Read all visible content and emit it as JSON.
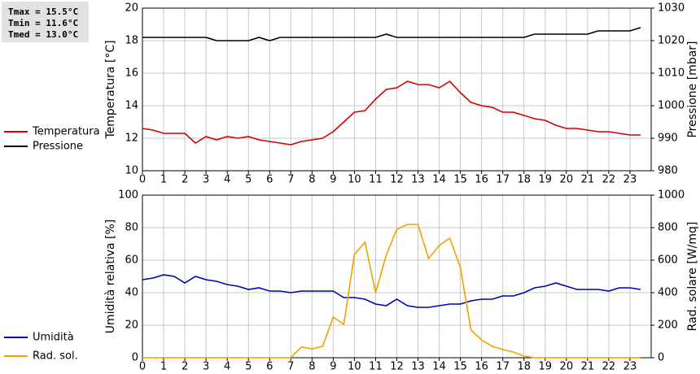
{
  "chart_data": [
    {
      "type": "line",
      "annotations": [
        "Tmax = 15.5°C",
        "Tmin = 11.6°C",
        "Tmed = 13.0°C"
      ],
      "ylabel": "Temperatura [°C]",
      "y2label": "Pressione [mbar]",
      "x": [
        0,
        0.5,
        1,
        1.5,
        2,
        2.5,
        3,
        3.5,
        4,
        4.5,
        5,
        5.5,
        6,
        6.5,
        7,
        7.5,
        8,
        8.5,
        9,
        9.5,
        10,
        10.5,
        11,
        11.5,
        12,
        12.5,
        13,
        13.5,
        14,
        14.5,
        15,
        15.5,
        16,
        16.5,
        17,
        17.5,
        18,
        18.5,
        19,
        19.5,
        20,
        20.5,
        21,
        21.5,
        22,
        22.5,
        23,
        23.5
      ],
      "series": [
        {
          "name": "Temperatura",
          "color": "#d40000",
          "values": [
            12.6,
            12.5,
            12.3,
            12.3,
            12.3,
            11.7,
            12.1,
            11.9,
            12.1,
            12.0,
            12.1,
            11.9,
            11.8,
            11.7,
            11.6,
            11.8,
            11.9,
            12.0,
            12.4,
            13.0,
            13.6,
            13.7,
            14.4,
            15.0,
            15.1,
            15.5,
            15.3,
            15.3,
            15.1,
            15.5,
            14.8,
            14.2,
            14.0,
            13.9,
            13.6,
            13.6,
            13.4,
            13.2,
            13.1,
            12.8,
            12.6,
            12.6,
            12.5,
            12.4,
            12.4,
            12.3,
            12.2,
            12.2
          ]
        },
        {
          "name": "Pressione",
          "color": "#000000",
          "axis": "y2",
          "values": [
            1021,
            1021,
            1021,
            1021,
            1021,
            1021,
            1021,
            1020,
            1020,
            1020,
            1020,
            1021,
            1020,
            1021,
            1021,
            1021,
            1021,
            1021,
            1021,
            1021,
            1021,
            1021,
            1021,
            1022,
            1021,
            1021,
            1021,
            1021,
            1021,
            1021,
            1021,
            1021,
            1021,
            1021,
            1021,
            1021,
            1021,
            1022,
            1022,
            1022,
            1022,
            1022,
            1022,
            1023,
            1023,
            1023,
            1023,
            1024
          ]
        }
      ],
      "xlim": [
        0,
        24
      ],
      "xticks": [
        0,
        1,
        2,
        3,
        4,
        5,
        6,
        7,
        8,
        9,
        10,
        11,
        12,
        13,
        14,
        15,
        16,
        17,
        18,
        19,
        20,
        21,
        22,
        23
      ],
      "ylim": [
        10,
        20
      ],
      "yticks": [
        10,
        12,
        14,
        16,
        18,
        20
      ],
      "y2lim": [
        980,
        1030
      ],
      "y2ticks": [
        980,
        990,
        1000,
        1010,
        1020,
        1030
      ],
      "grid": true
    },
    {
      "type": "line",
      "ylabel": "Umidità relativa [%]",
      "y2label": "Rad. solare [W/mq]",
      "x": [
        0,
        0.5,
        1,
        1.5,
        2,
        2.5,
        3,
        3.5,
        4,
        4.5,
        5,
        5.5,
        6,
        6.5,
        7,
        7.5,
        8,
        8.5,
        9,
        9.5,
        10,
        10.5,
        11,
        11.5,
        12,
        12.5,
        13,
        13.5,
        14,
        14.5,
        15,
        15.5,
        16,
        16.5,
        17,
        17.5,
        18,
        18.5,
        19,
        19.5,
        20,
        20.5,
        21,
        21.5,
        22,
        22.5,
        23,
        23.5
      ],
      "series": [
        {
          "name": "Umidità",
          "color": "#0000b4",
          "values": [
            48,
            49,
            51,
            50,
            46,
            50,
            48,
            47,
            45,
            44,
            42,
            43,
            41,
            41,
            40,
            41,
            41,
            41,
            41,
            37,
            37,
            36,
            33,
            32,
            36,
            32,
            31,
            31,
            32,
            33,
            33,
            35,
            36,
            36,
            38,
            38,
            40,
            43,
            44,
            46,
            44,
            42,
            42,
            42,
            41,
            43,
            43,
            42
          ]
        },
        {
          "name": "Rad. sol.",
          "color": "#f0a000",
          "axis": "y2",
          "values": [
            0,
            0,
            0,
            0,
            0,
            0,
            0,
            0,
            0,
            0,
            0,
            0,
            0,
            0,
            0,
            65,
            55,
            70,
            250,
            205,
            635,
            710,
            400,
            630,
            790,
            820,
            820,
            610,
            690,
            735,
            555,
            170,
            110,
            70,
            50,
            35,
            10,
            0,
            0,
            0,
            0,
            0,
            0,
            0,
            0,
            0,
            0,
            0
          ]
        }
      ],
      "xlim": [
        0,
        24
      ],
      "xticks": [
        0,
        1,
        2,
        3,
        4,
        5,
        6,
        7,
        8,
        9,
        10,
        11,
        12,
        13,
        14,
        15,
        16,
        17,
        18,
        19,
        20,
        21,
        22,
        23
      ],
      "ylim": [
        0,
        100
      ],
      "yticks": [
        0,
        20,
        40,
        60,
        80,
        100
      ],
      "y2lim": [
        0,
        1000
      ],
      "y2ticks": [
        0,
        200,
        400,
        600,
        800,
        1000
      ],
      "grid": true
    }
  ]
}
